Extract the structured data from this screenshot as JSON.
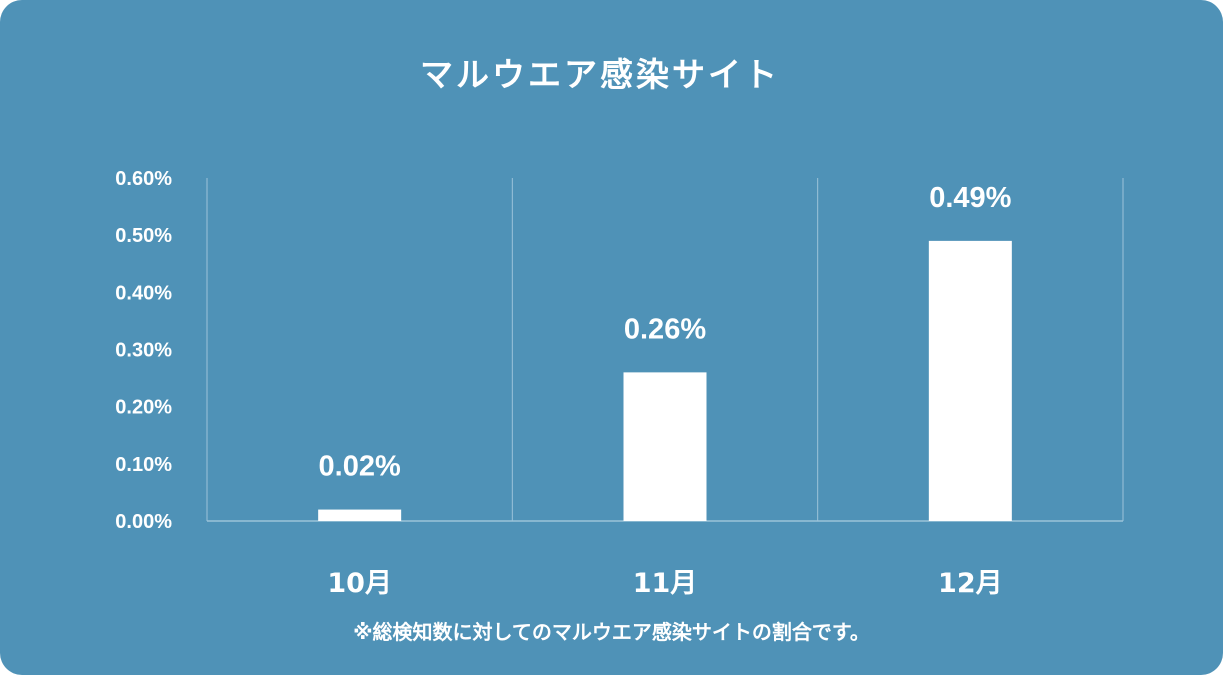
{
  "colors": {
    "background": "#4f92b7",
    "bar": "#ffffff",
    "grid": "#9cc3d9",
    "text": "#ffffff"
  },
  "chart_data": {
    "type": "bar",
    "title": "マルウエア感染サイト",
    "categories": [
      "10月",
      "11月",
      "12月"
    ],
    "values": [
      0.02,
      0.26,
      0.49
    ],
    "data_labels": [
      "0.02%",
      "0.26%",
      "0.49%"
    ],
    "ylim": [
      0,
      0.6
    ],
    "yticks": [
      0.0,
      0.1,
      0.2,
      0.3,
      0.4,
      0.5,
      0.6
    ],
    "ytick_labels": [
      "0.00%",
      "0.10%",
      "0.20%",
      "0.30%",
      "0.40%",
      "0.50%",
      "0.60%"
    ],
    "grid": "vertical category separators",
    "legend": "none",
    "footnote": "※総検知数に対してのマルウエア感染サイトの割合です。"
  }
}
